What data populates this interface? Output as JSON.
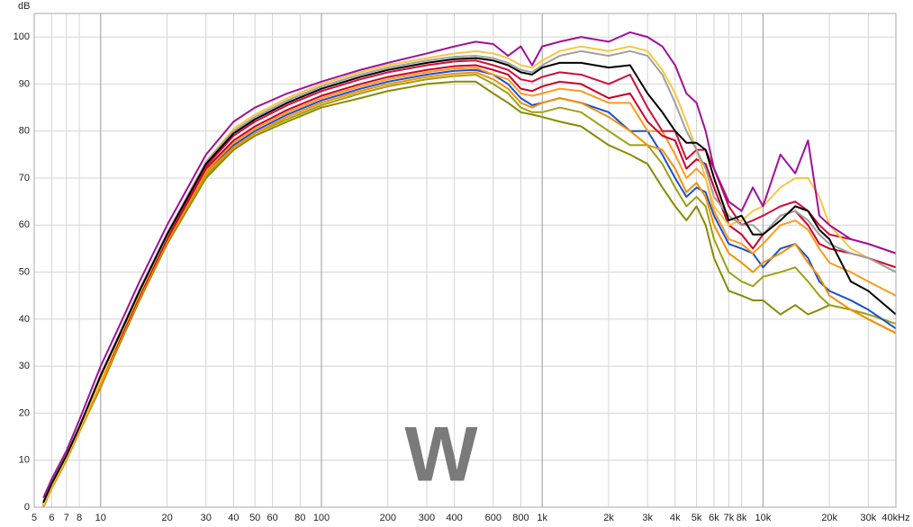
{
  "chart_data": {
    "type": "line",
    "y_label": "dB",
    "watermark": "W",
    "log_x": true,
    "grid": true,
    "xlim": [
      5,
      40000
    ],
    "ylim": [
      0,
      105
    ],
    "xticks": [
      5,
      6,
      7,
      8,
      10,
      20,
      30,
      40,
      50,
      60,
      80,
      100,
      200,
      300,
      400,
      600,
      800,
      {
        "value": 1000,
        "label": "1k"
      },
      {
        "value": 2000,
        "label": "2k"
      },
      {
        "value": 3000,
        "label": "3k"
      },
      {
        "value": 4000,
        "label": "4k"
      },
      {
        "value": 5000,
        "label": "5k"
      },
      {
        "value": 6000,
        "label": "6k"
      },
      {
        "value": 7000,
        "label": "7k"
      },
      {
        "value": 8000,
        "label": "8k"
      },
      {
        "value": 10000,
        "label": "10k"
      },
      {
        "value": 20000,
        "label": "20k"
      },
      {
        "value": 30000,
        "label": "30k"
      },
      {
        "value": 40000,
        "label": "40kHz"
      }
    ],
    "yticks": [
      0,
      10,
      20,
      30,
      40,
      50,
      60,
      70,
      80,
      90,
      100
    ],
    "x": [
      5.5,
      6,
      7,
      8,
      10,
      12,
      15,
      20,
      30,
      40,
      50,
      70,
      100,
      150,
      200,
      300,
      400,
      500,
      600,
      700,
      800,
      900,
      1000,
      1200,
      1500,
      2000,
      2500,
      3000,
      3500,
      4000,
      4500,
      5000,
      5500,
      6000,
      7000,
      8000,
      9000,
      10000,
      12000,
      14000,
      16000,
      18000,
      20000,
      25000,
      30000,
      40000
    ],
    "series": [
      {
        "color": "#8a8a00",
        "values": [
          0,
          4,
          10,
          16,
          25.5,
          34,
          44,
          56,
          70,
          76,
          79,
          82,
          85,
          87,
          88.5,
          90,
          90.5,
          90.5,
          88,
          86,
          84,
          83.5,
          83,
          82,
          81,
          77,
          75,
          73,
          68,
          64,
          61,
          64,
          60,
          53,
          46,
          45,
          44,
          44,
          41,
          43,
          41,
          42,
          43,
          42,
          40,
          37
        ]
      },
      {
        "color": "#a0a010",
        "values": [
          0.2,
          4.2,
          10,
          16,
          26,
          34.5,
          44.5,
          56.5,
          70.5,
          76.5,
          79.5,
          82.5,
          85.5,
          88,
          89.5,
          91,
          91.7,
          92,
          90,
          88,
          85,
          84,
          84,
          85,
          84,
          80,
          77,
          77,
          73,
          68,
          64,
          66,
          64,
          57,
          50,
          48,
          47,
          49,
          50,
          51,
          48,
          45,
          43,
          42,
          41,
          39
        ]
      },
      {
        "color": "#1a4fd0",
        "values": [
          0.3,
          4.3,
          10.2,
          16.2,
          26.5,
          34.8,
          44.8,
          56.8,
          71.2,
          77,
          80,
          83.5,
          86.5,
          89,
          90.5,
          92,
          92.8,
          93,
          92,
          90,
          87,
          85.5,
          86,
          87,
          86,
          84,
          80,
          80,
          75,
          70,
          66,
          68,
          67,
          62,
          56,
          55,
          54,
          51,
          55,
          56,
          53,
          48,
          46,
          44,
          42,
          38
        ]
      },
      {
        "color": "#f59000",
        "values": [
          0,
          4,
          10,
          16,
          26,
          34.5,
          44.5,
          56.5,
          71,
          76.5,
          79.5,
          83,
          86,
          88.5,
          90,
          91.5,
          92.2,
          92.5,
          91,
          89,
          86,
          85,
          86,
          87,
          86,
          83,
          80,
          77,
          76,
          72,
          67,
          69,
          66,
          60,
          54,
          52,
          50,
          52,
          54,
          56,
          52,
          49,
          45,
          42,
          40,
          37
        ]
      },
      {
        "color": "#ff9a1a",
        "values": [
          0.4,
          4.4,
          10.3,
          16.3,
          26.5,
          34.8,
          44.8,
          56.8,
          71.5,
          77.5,
          80.5,
          84,
          87,
          89.5,
          91,
          92.5,
          93.3,
          93.5,
          92,
          91,
          88,
          87.5,
          88,
          89,
          88.5,
          86,
          86,
          80,
          80,
          75,
          70,
          72,
          70,
          63,
          57,
          56,
          54,
          56,
          60,
          61,
          59,
          55,
          52,
          50,
          48,
          45
        ]
      },
      {
        "color": "#c8002a",
        "values": [
          0.6,
          4.6,
          10.5,
          16.5,
          27,
          35,
          45,
          57,
          72,
          78,
          81,
          84.5,
          87.5,
          90,
          91.5,
          93,
          93.8,
          94,
          93,
          92,
          89,
          88.5,
          89.5,
          90.5,
          90,
          87,
          88,
          82,
          79,
          78,
          72,
          74,
          73,
          68,
          60,
          58,
          55,
          58,
          62,
          63,
          60,
          56,
          55,
          54,
          53,
          51
        ]
      },
      {
        "color": "#d0103a",
        "values": [
          0.8,
          4.8,
          10.8,
          16.8,
          27.5,
          35.5,
          45.5,
          57.5,
          72.5,
          79,
          82,
          85.5,
          88.5,
          91,
          92.5,
          94,
          94.8,
          95,
          94,
          93,
          91,
          90.5,
          91.5,
          92.5,
          92,
          90,
          92,
          85,
          80,
          80,
          74,
          76,
          76,
          72,
          64,
          60,
          61,
          62,
          64,
          65,
          63,
          60,
          58,
          57,
          56,
          54
        ]
      },
      {
        "color": "#f5c842",
        "values": [
          0.5,
          4.5,
          10.5,
          16.5,
          27,
          35.5,
          45.5,
          57.8,
          73.5,
          80.5,
          83.5,
          87,
          90,
          92.5,
          94,
          95.5,
          96.5,
          97,
          96.5,
          95.5,
          94,
          93.5,
          95,
          97,
          98,
          97,
          98,
          97,
          93,
          88,
          82,
          76,
          70,
          64,
          60,
          61,
          63,
          64,
          68,
          70,
          70,
          66,
          60,
          55,
          53,
          50
        ]
      },
      {
        "color": "#a0a0a0",
        "values": [
          1.2,
          5.2,
          11.2,
          17.2,
          28.2,
          36.3,
          46.3,
          58.3,
          73.4,
          80,
          83,
          86.5,
          89.5,
          92,
          93.5,
          95,
          95.8,
          96,
          95.5,
          94.5,
          93,
          92.5,
          94,
          96,
          97,
          96,
          97,
          96,
          92,
          86,
          80,
          76,
          72,
          66,
          62,
          60,
          60,
          58,
          62,
          63,
          61,
          58,
          56,
          54,
          53,
          50
        ]
      },
      {
        "color": "#000000",
        "values": [
          1,
          5,
          11,
          17,
          28,
          36,
          46,
          58,
          73,
          79.5,
          82.5,
          86,
          89,
          91.5,
          93,
          94.5,
          95.3,
          95.5,
          95,
          94,
          92.5,
          92,
          93.5,
          94.5,
          94.5,
          93.5,
          94,
          88,
          84,
          80,
          77.5,
          77.5,
          76,
          70,
          61,
          62,
          58,
          58,
          61,
          64,
          63,
          59,
          57,
          48,
          46,
          41
        ]
      },
      {
        "color": "#a0109a",
        "values": [
          2,
          6,
          12,
          18.5,
          30,
          38,
          48,
          60,
          75,
          82,
          85,
          88,
          90.5,
          93,
          94.5,
          96.5,
          98,
          99,
          98.5,
          96,
          98,
          94,
          98,
          99,
          100,
          99,
          101,
          100,
          98,
          94,
          88,
          86,
          80,
          72,
          65,
          63,
          68,
          64,
          75,
          71,
          78,
          62,
          60,
          57,
          56,
          54
        ]
      }
    ]
  }
}
